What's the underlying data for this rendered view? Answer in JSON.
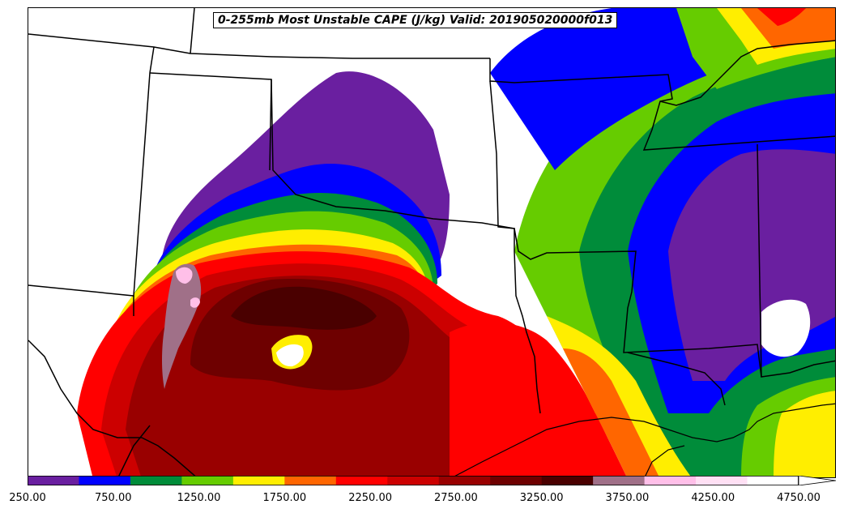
{
  "title": "0-255mb Most Unstable CAPE (J/kg) Valid: 201905020000f013",
  "colorbar": {
    "colors": [
      "#6a1fa0",
      "#0000ff",
      "#008c3a",
      "#66cc00",
      "#ffee00",
      "#ff6600",
      "#ff0000",
      "#cc0000",
      "#990000",
      "#6e0000",
      "#4a0000",
      "#a07088",
      "#ffbfe8",
      "#ffe0f4",
      "#ffffff"
    ],
    "tick_labels": [
      "250.00",
      "750.00",
      "1250.00",
      "1750.00",
      "2250.00",
      "2750.00",
      "3250.00",
      "3750.00",
      "4250.00",
      "4750.00"
    ],
    "min": 250,
    "max": 4750,
    "extend": "max"
  },
  "map_region": "South-central United States",
  "background_color": "#ffffff"
}
